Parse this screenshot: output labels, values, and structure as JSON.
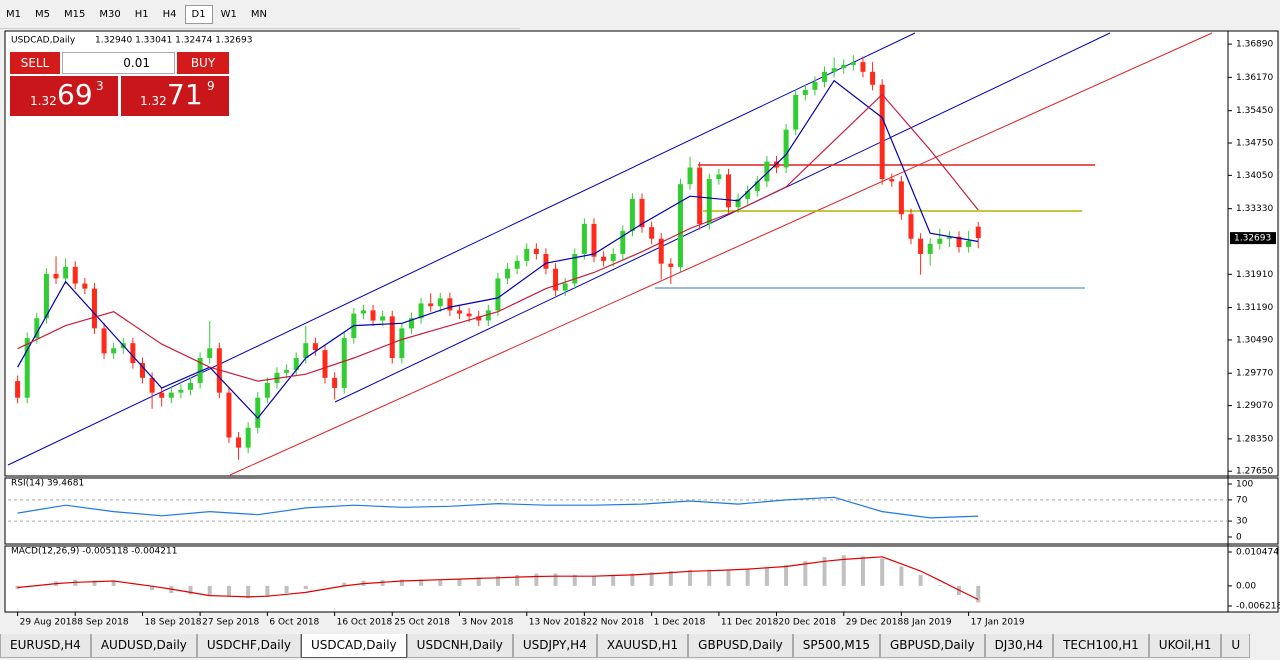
{
  "toolbar": {
    "timeframes": [
      "M1",
      "M5",
      "M15",
      "M30",
      "H1",
      "H4",
      "D1",
      "W1",
      "MN"
    ],
    "active": "D1"
  },
  "trade_panel": {
    "sell": "SELL",
    "lot": "0.01",
    "buy": "BUY",
    "bid_big": "1.32",
    "bid_pips": "69",
    "bid_frac": "3",
    "ask_big": "1.32",
    "ask_pips": "71",
    "ask_frac": "9"
  },
  "chart_data": [
    {
      "type": "candlestick",
      "title": "USDCAD,Daily",
      "quote": "1.32940 1.33041 1.32474 1.32693",
      "last_label": "1.32693",
      "up_color": "#32cd32",
      "down_color": "#ff2a1a",
      "xlim": [
        -1,
        126
      ],
      "ylim": [
        1.2759,
        1.3713
      ],
      "yticks": [
        {
          "value": 1.3689,
          "label": "1.36890"
        },
        {
          "value": 1.3617,
          "label": "1.36170"
        },
        {
          "value": 1.3545,
          "label": "1.35450"
        },
        {
          "value": 1.3475,
          "label": "1.34750"
        },
        {
          "value": 1.3405,
          "label": "1.34050"
        },
        {
          "value": 1.3333,
          "label": "1.33330"
        },
        {
          "value": 1.3191,
          "label": "1.31910"
        },
        {
          "value": 1.3119,
          "label": "1.31190"
        },
        {
          "value": 1.3049,
          "label": "1.30490"
        },
        {
          "value": 1.2977,
          "label": "1.29770"
        },
        {
          "value": 1.2907,
          "label": "1.29070"
        },
        {
          "value": 1.2835,
          "label": "1.28350"
        },
        {
          "value": 1.2765,
          "label": "1.27650"
        }
      ],
      "xticks": [
        {
          "value": 0,
          "label": "29 Aug 2018"
        },
        {
          "value": 6,
          "label": "8 Sep 2018"
        },
        {
          "value": 13,
          "label": "18 Sep 2018"
        },
        {
          "value": 19,
          "label": "27 Sep 2018"
        },
        {
          "value": 26,
          "label": "6 Oct 2018"
        },
        {
          "value": 33,
          "label": "16 Oct 2018"
        },
        {
          "value": 39,
          "label": "25 Oct 2018"
        },
        {
          "value": 46,
          "label": "3 Nov 2018"
        },
        {
          "value": 53,
          "label": "13 Nov 2018"
        },
        {
          "value": 59,
          "label": "22 Nov 2018"
        },
        {
          "value": 66,
          "label": "1 Dec 2018"
        },
        {
          "value": 73,
          "label": "11 Dec 2018"
        },
        {
          "value": 79,
          "label": "20 Dec 2018"
        },
        {
          "value": 86,
          "label": "29 Dec 2018"
        },
        {
          "value": 92,
          "label": "8 Jan 2019"
        },
        {
          "value": 99,
          "label": "17 Jan 2019"
        }
      ],
      "open": [
        1.296,
        1.2924,
        1.3053,
        1.3096,
        1.3192,
        1.3182,
        1.3207,
        1.3171,
        1.316,
        1.3074,
        1.302,
        1.3031,
        1.3042,
        1.2999,
        1.2967,
        1.2935,
        1.2924,
        1.2935,
        1.2941,
        1.2956,
        1.301,
        1.3031,
        1.2935,
        1.2838,
        1.2816,
        1.2859,
        1.2924,
        1.2956,
        1.2978,
        1.2984,
        1.301,
        1.3042,
        1.3027,
        1.2967,
        1.2945,
        1.3053,
        1.3106,
        1.3113,
        1.3091,
        1.31,
        1.301,
        1.3074,
        1.3096,
        1.3128,
        1.3122,
        1.3139,
        1.3113,
        1.3106,
        1.31,
        1.3091,
        1.3113,
        1.3182,
        1.3203,
        1.322,
        1.3246,
        1.3235,
        1.3203,
        1.3156,
        1.3171,
        1.3235,
        1.33,
        1.3229,
        1.322,
        1.3235,
        1.3285,
        1.3354,
        1.3293,
        1.3268,
        1.3214,
        1.3207,
        1.3386,
        1.3422,
        1.33,
        1.3397,
        1.3407,
        1.3336,
        1.3354,
        1.3371,
        1.3392,
        1.3435,
        1.3422,
        1.3504,
        1.3579,
        1.359,
        1.3607,
        1.3629,
        1.3637,
        1.3644,
        1.365,
        1.3629,
        1.3601,
        1.3397,
        1.3392,
        1.3321,
        1.3268,
        1.3235,
        1.3257,
        1.3268,
        1.3272,
        1.325,
        1.3294
      ],
      "high": [
        1.2972,
        1.3065,
        1.3108,
        1.3204,
        1.323,
        1.3225,
        1.3219,
        1.3183,
        1.3172,
        1.3086,
        1.3043,
        1.3054,
        1.3054,
        1.3011,
        1.2979,
        1.2947,
        1.2947,
        1.2953,
        1.2968,
        1.3022,
        1.309,
        1.3043,
        1.2947,
        1.285,
        1.2871,
        1.2936,
        1.2968,
        1.299,
        1.2996,
        1.3022,
        1.308,
        1.3054,
        1.3039,
        1.2979,
        1.3065,
        1.3118,
        1.3125,
        1.3125,
        1.3112,
        1.3112,
        1.3086,
        1.3108,
        1.314,
        1.315,
        1.3151,
        1.3151,
        1.3125,
        1.3118,
        1.3112,
        1.3125,
        1.3194,
        1.3215,
        1.3232,
        1.3258,
        1.3258,
        1.3247,
        1.3215,
        1.3183,
        1.3247,
        1.3312,
        1.3312,
        1.3241,
        1.3247,
        1.3297,
        1.3366,
        1.3366,
        1.3305,
        1.328,
        1.3226,
        1.3398,
        1.3445,
        1.3434,
        1.3409,
        1.3419,
        1.3419,
        1.3366,
        1.3383,
        1.3404,
        1.3447,
        1.3447,
        1.3516,
        1.3591,
        1.3602,
        1.3619,
        1.3641,
        1.366,
        1.3656,
        1.3665,
        1.3662,
        1.365,
        1.3613,
        1.3409,
        1.3404,
        1.3333,
        1.328,
        1.3269,
        1.329,
        1.3284,
        1.3284,
        1.3285,
        1.33041
      ],
      "low": [
        1.2912,
        1.2912,
        1.3041,
        1.3084,
        1.317,
        1.317,
        1.3159,
        1.3148,
        1.3062,
        1.3008,
        1.3008,
        1.3019,
        1.2987,
        1.2955,
        1.29,
        1.2905,
        1.2912,
        1.2923,
        1.2929,
        1.2944,
        1.2998,
        1.2923,
        1.2826,
        1.279,
        1.2804,
        1.2847,
        1.2912,
        1.2944,
        1.2966,
        1.2972,
        1.2998,
        1.3015,
        1.2955,
        1.292,
        1.2933,
        1.3041,
        1.3094,
        1.3079,
        1.3079,
        1.2998,
        1.2998,
        1.3062,
        1.3084,
        1.311,
        1.311,
        1.3101,
        1.3094,
        1.3088,
        1.3079,
        1.3079,
        1.3101,
        1.317,
        1.3191,
        1.3208,
        1.3223,
        1.3191,
        1.3144,
        1.3144,
        1.3159,
        1.3223,
        1.3217,
        1.3208,
        1.3208,
        1.3223,
        1.3273,
        1.3281,
        1.3256,
        1.318,
        1.317,
        1.3195,
        1.3374,
        1.3288,
        1.3288,
        1.3385,
        1.3324,
        1.3324,
        1.3342,
        1.3359,
        1.338,
        1.341,
        1.341,
        1.3492,
        1.3567,
        1.3578,
        1.3595,
        1.3617,
        1.3625,
        1.3632,
        1.3617,
        1.3589,
        1.3385,
        1.338,
        1.3309,
        1.3256,
        1.319,
        1.321,
        1.3245,
        1.325,
        1.3238,
        1.3238,
        1.32474
      ],
      "close": [
        1.2924,
        1.3053,
        1.3096,
        1.3192,
        1.3182,
        1.3207,
        1.3171,
        1.316,
        1.3074,
        1.302,
        1.3031,
        1.3042,
        1.2999,
        1.2967,
        1.2935,
        1.2924,
        1.2935,
        1.2941,
        1.2956,
        1.301,
        1.3031,
        1.2935,
        1.2838,
        1.2816,
        1.2859,
        1.2924,
        1.2956,
        1.2978,
        1.2984,
        1.301,
        1.3042,
        1.3027,
        1.2967,
        1.2945,
        1.3053,
        1.3106,
        1.3113,
        1.3091,
        1.31,
        1.301,
        1.3074,
        1.3096,
        1.3128,
        1.3122,
        1.3139,
        1.3113,
        1.3106,
        1.31,
        1.3091,
        1.3113,
        1.3182,
        1.3203,
        1.322,
        1.3246,
        1.3235,
        1.3203,
        1.3156,
        1.3171,
        1.3235,
        1.33,
        1.3229,
        1.322,
        1.3235,
        1.3285,
        1.3354,
        1.3293,
        1.3268,
        1.3214,
        1.3207,
        1.3386,
        1.3422,
        1.33,
        1.3397,
        1.3407,
        1.3336,
        1.3354,
        1.3371,
        1.3392,
        1.3435,
        1.3422,
        1.3504,
        1.3579,
        1.359,
        1.3607,
        1.3629,
        1.3637,
        1.3644,
        1.365,
        1.3629,
        1.3601,
        1.3397,
        1.3392,
        1.3321,
        1.3268,
        1.3235,
        1.3257,
        1.3268,
        1.3272,
        1.325,
        1.3263,
        1.32693
      ],
      "series": [
        {
          "color": "#0000b4",
          "x": [
            0,
            5,
            10,
            15,
            20,
            25,
            30,
            35,
            40,
            45,
            50,
            55,
            60,
            65,
            70,
            75,
            80,
            85,
            90,
            95,
            100
          ],
          "values": [
            1.299,
            1.3175,
            1.306,
            1.2945,
            1.299,
            1.288,
            1.301,
            1.308,
            1.3085,
            1.312,
            1.314,
            1.3215,
            1.3235,
            1.33,
            1.336,
            1.335,
            1.345,
            1.361,
            1.353,
            1.328,
            1.3262
          ]
        },
        {
          "color": "#c81e3c",
          "x": [
            0,
            5,
            10,
            15,
            20,
            25,
            30,
            35,
            40,
            45,
            50,
            55,
            60,
            65,
            70,
            75,
            80,
            85,
            90,
            95,
            100
          ],
          "values": [
            1.303,
            1.308,
            1.311,
            1.304,
            1.299,
            1.296,
            1.2975,
            1.301,
            1.305,
            1.308,
            1.311,
            1.316,
            1.3195,
            1.324,
            1.329,
            1.333,
            1.338,
            1.348,
            1.358,
            1.346,
            1.333
          ]
        }
      ]
    },
    {
      "type": "line",
      "title": "RSI(14) 39.4681",
      "ylim": [
        0,
        100
      ],
      "yticks": [
        100,
        70,
        30,
        0
      ],
      "series": [
        {
          "color": "#1e78e6",
          "x": [
            0,
            5,
            10,
            15,
            20,
            25,
            30,
            35,
            40,
            45,
            50,
            55,
            60,
            65,
            70,
            75,
            80,
            85,
            90,
            95,
            100
          ],
          "values": [
            45,
            60,
            48,
            40,
            48,
            42,
            55,
            60,
            56,
            58,
            63,
            60,
            60,
            62,
            68,
            62,
            70,
            75,
            48,
            36,
            39.4681
          ]
        }
      ]
    },
    {
      "type": "macd",
      "title": "MACD(12,26,9) -0.005118 -0.004211",
      "ylim": [
        -0.006218,
        0.010474
      ],
      "yticks": [
        0.010474,
        {
          "value": 0,
          "label": "0.00"
        },
        -0.006218
      ],
      "x": [
        0,
        2,
        4,
        6,
        8,
        10,
        12,
        14,
        16,
        18,
        20,
        22,
        24,
        26,
        28,
        30,
        32,
        34,
        36,
        38,
        40,
        42,
        44,
        46,
        48,
        50,
        52,
        54,
        56,
        58,
        60,
        62,
        64,
        66,
        68,
        70,
        72,
        74,
        76,
        78,
        80,
        82,
        84,
        86,
        88,
        90,
        92,
        94,
        96,
        98,
        100
      ],
      "series": [
        {
          "color": "#c0c0c0",
          "values": [
            -0.001,
            0.0002,
            0.0014,
            0.0019,
            0.0017,
            0.0015,
            0.0001,
            -0.0013,
            -0.0022,
            -0.0026,
            -0.003,
            -0.0034,
            -0.0038,
            -0.0034,
            -0.0022,
            -0.001,
            0.0,
            0.001,
            0.0016,
            0.0018,
            0.002,
            0.002,
            0.002,
            0.0022,
            0.0026,
            0.003,
            0.0034,
            0.0038,
            0.0038,
            0.0034,
            0.003,
            0.0034,
            0.0038,
            0.0042,
            0.0046,
            0.005,
            0.005,
            0.005,
            0.0053,
            0.0059,
            0.0065,
            0.0077,
            0.0089,
            0.0095,
            0.0091,
            0.0085,
            0.006,
            0.0034,
            0.0002,
            -0.0028,
            -0.005118
          ]
        },
        {
          "color": "#e00000",
          "values": [
            -0.0005,
            0.0001,
            0.0007,
            0.0011,
            0.0013,
            0.0015,
            0.0007,
            -0.0001,
            -0.001,
            -0.002,
            -0.003,
            -0.0032,
            -0.0034,
            -0.0032,
            -0.0026,
            -0.002,
            -0.001,
            0.0,
            0.0007,
            0.0011,
            0.0015,
            0.0017,
            0.0019,
            0.0021,
            0.0023,
            0.0025,
            0.0027,
            0.0029,
            0.003,
            0.003,
            0.003,
            0.0032,
            0.0034,
            0.0037,
            0.0041,
            0.0045,
            0.0047,
            0.0049,
            0.0052,
            0.0056,
            0.006,
            0.0068,
            0.0076,
            0.0082,
            0.0086,
            0.009,
            0.0068,
            0.0046,
            0.0017,
            -0.0013,
            -0.004211
          ]
        }
      ]
    }
  ],
  "tabs": [
    "EURUSD,H4",
    "AUDUSD,Daily",
    "USDCHF,Daily",
    "USDCAD,Daily",
    "USDCNH,Daily",
    "USDJPY,H4",
    "XAUUSD,H1",
    "GBPUSD,Daily",
    "SP500,M15",
    "GBPUSD,Daily",
    "DJ30,H4",
    "TECH100,H1",
    "UKOil,H1",
    "U"
  ],
  "active_tab": 3
}
